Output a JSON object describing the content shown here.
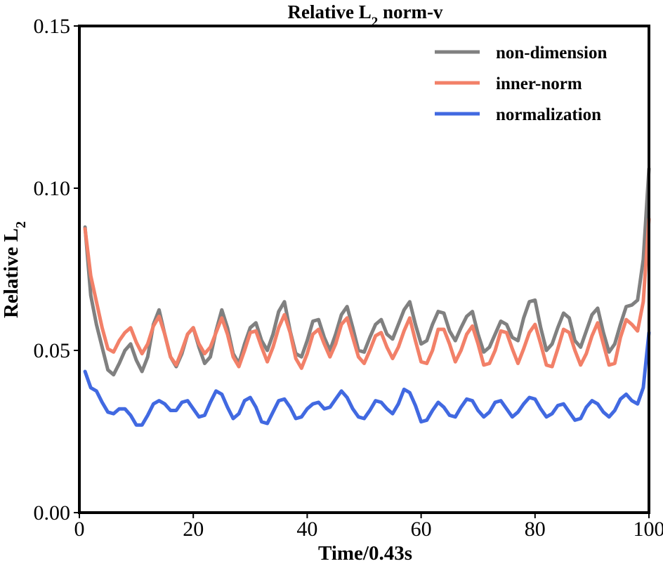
{
  "chart_data": {
    "type": "line",
    "title": "Relative L",
    "title_subscript": "2",
    "title_suffix": " norm-v",
    "xlabel": "Time/0.43s",
    "ylabel": "Relative L",
    "ylabel_subscript": "2",
    "xlim": [
      0,
      100
    ],
    "ylim": [
      0,
      0.15
    ],
    "xticks": [
      0,
      20,
      40,
      60,
      80,
      100
    ],
    "xtick_labels": [
      "0",
      "20",
      "40",
      "60",
      "80",
      "100"
    ],
    "yticks": [
      0,
      0.05,
      0.1,
      0.15
    ],
    "ytick_labels": [
      "0.00",
      "0.05",
      "0.10",
      "0.15"
    ],
    "legend_position": "top-right",
    "grid": false,
    "x": [
      1,
      2,
      3,
      4,
      5,
      6,
      7,
      8,
      9,
      10,
      11,
      12,
      13,
      14,
      15,
      16,
      17,
      18,
      19,
      20,
      21,
      22,
      23,
      24,
      25,
      26,
      27,
      28,
      29,
      30,
      31,
      32,
      33,
      34,
      35,
      36,
      37,
      38,
      39,
      40,
      41,
      42,
      43,
      44,
      45,
      46,
      47,
      48,
      49,
      50,
      51,
      52,
      53,
      54,
      55,
      56,
      57,
      58,
      59,
      60,
      61,
      62,
      63,
      64,
      65,
      66,
      67,
      68,
      69,
      70,
      71,
      72,
      73,
      74,
      75,
      76,
      77,
      78,
      79,
      80,
      81,
      82,
      83,
      84,
      85,
      86,
      87,
      88,
      89,
      90,
      91,
      92,
      93,
      94,
      95,
      96,
      97,
      98,
      99,
      100
    ],
    "series": [
      {
        "name": "non-dimension",
        "color": "#808080",
        "values": [
          0.088,
          0.067,
          0.058,
          0.051,
          0.044,
          0.0425,
          0.046,
          0.05,
          0.052,
          0.047,
          0.0435,
          0.048,
          0.058,
          0.0625,
          0.055,
          0.048,
          0.045,
          0.049,
          0.055,
          0.057,
          0.051,
          0.046,
          0.048,
          0.056,
          0.0625,
          0.057,
          0.049,
          0.046,
          0.052,
          0.057,
          0.0585,
          0.053,
          0.05,
          0.055,
          0.062,
          0.065,
          0.056,
          0.049,
          0.048,
          0.053,
          0.059,
          0.0595,
          0.054,
          0.05,
          0.055,
          0.061,
          0.0635,
          0.057,
          0.05,
          0.0495,
          0.054,
          0.058,
          0.0595,
          0.055,
          0.0535,
          0.058,
          0.0625,
          0.065,
          0.058,
          0.052,
          0.053,
          0.058,
          0.062,
          0.0615,
          0.056,
          0.053,
          0.057,
          0.0605,
          0.062,
          0.055,
          0.0495,
          0.051,
          0.055,
          0.059,
          0.058,
          0.054,
          0.053,
          0.06,
          0.065,
          0.0655,
          0.057,
          0.05,
          0.052,
          0.057,
          0.0615,
          0.06,
          0.053,
          0.051,
          0.056,
          0.061,
          0.063,
          0.0555,
          0.0495,
          0.052,
          0.058,
          0.0635,
          0.064,
          0.0655,
          0.078,
          0.106
        ]
      },
      {
        "name": "inner-norm",
        "color": "#f28068",
        "values": [
          0.0875,
          0.073,
          0.065,
          0.057,
          0.0505,
          0.0495,
          0.053,
          0.0555,
          0.057,
          0.0525,
          0.049,
          0.052,
          0.0575,
          0.0605,
          0.055,
          0.048,
          0.0455,
          0.05,
          0.055,
          0.057,
          0.052,
          0.049,
          0.051,
          0.0555,
          0.06,
          0.055,
          0.048,
          0.045,
          0.05,
          0.0555,
          0.056,
          0.051,
          0.0465,
          0.051,
          0.057,
          0.061,
          0.0555,
          0.0475,
          0.0445,
          0.049,
          0.055,
          0.0565,
          0.052,
          0.048,
          0.052,
          0.058,
          0.06,
          0.054,
          0.048,
          0.046,
          0.05,
          0.0545,
          0.0555,
          0.051,
          0.0475,
          0.051,
          0.056,
          0.06,
          0.053,
          0.0465,
          0.046,
          0.05,
          0.0565,
          0.0565,
          0.052,
          0.0465,
          0.05,
          0.055,
          0.0575,
          0.052,
          0.0455,
          0.046,
          0.05,
          0.056,
          0.0555,
          0.0505,
          0.046,
          0.0505,
          0.0555,
          0.058,
          0.052,
          0.0455,
          0.045,
          0.0505,
          0.0565,
          0.0555,
          0.05,
          0.0455,
          0.049,
          0.0545,
          0.0585,
          0.052,
          0.0455,
          0.046,
          0.054,
          0.0595,
          0.058,
          0.056,
          0.065,
          0.0905
        ]
      },
      {
        "name": "normalization",
        "color": "#4169e1",
        "values": [
          0.0435,
          0.0385,
          0.0375,
          0.034,
          0.031,
          0.0305,
          0.032,
          0.032,
          0.03,
          0.027,
          0.027,
          0.03,
          0.0335,
          0.0345,
          0.0335,
          0.0315,
          0.0315,
          0.034,
          0.0345,
          0.032,
          0.0295,
          0.03,
          0.034,
          0.0375,
          0.0365,
          0.0325,
          0.029,
          0.0305,
          0.0345,
          0.0355,
          0.0325,
          0.028,
          0.0275,
          0.031,
          0.0345,
          0.035,
          0.0325,
          0.029,
          0.0295,
          0.032,
          0.0335,
          0.034,
          0.032,
          0.0325,
          0.035,
          0.0375,
          0.0355,
          0.032,
          0.0295,
          0.029,
          0.0315,
          0.0345,
          0.034,
          0.032,
          0.0305,
          0.0335,
          0.038,
          0.037,
          0.033,
          0.028,
          0.0285,
          0.0315,
          0.034,
          0.0325,
          0.03,
          0.0295,
          0.0325,
          0.035,
          0.0345,
          0.0315,
          0.0295,
          0.031,
          0.034,
          0.0345,
          0.032,
          0.0295,
          0.031,
          0.0335,
          0.0355,
          0.035,
          0.032,
          0.0295,
          0.0305,
          0.033,
          0.0335,
          0.031,
          0.0285,
          0.029,
          0.0325,
          0.0345,
          0.0335,
          0.031,
          0.0295,
          0.0315,
          0.035,
          0.0365,
          0.0345,
          0.0335,
          0.0385,
          0.0555
        ]
      }
    ]
  }
}
